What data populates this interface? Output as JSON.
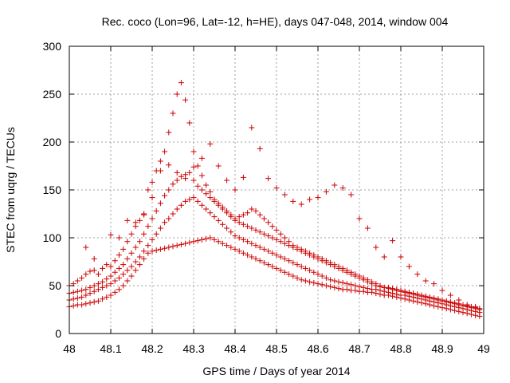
{
  "chart_data": {
    "type": "scatter",
    "title": "Rec. coco (Lon=96, Lat=-12, h=HE), days 047-048, 2014, window 004",
    "xlabel": "GPS time / Days of year 2014",
    "ylabel": "STEC from uqrg / TECUs",
    "xlim": [
      48,
      49
    ],
    "ylim": [
      0,
      300
    ],
    "x_ticks": [
      "48",
      "48.1",
      "48.2",
      "48.3",
      "48.4",
      "48.5",
      "48.6",
      "48.7",
      "48.8",
      "48.9",
      "49"
    ],
    "y_ticks": [
      "0",
      "50",
      "100",
      "150",
      "200",
      "250",
      "300"
    ],
    "grid": true,
    "legend": "none",
    "marker": "plus",
    "color": "#cc0000",
    "series": [
      {
        "x": [
          48.0,
          48.01,
          48.02,
          48.03,
          48.04,
          48.05,
          48.06,
          48.07,
          48.08,
          48.09,
          48.1,
          48.11,
          48.12,
          48.13,
          48.14,
          48.15,
          48.16,
          48.17,
          48.18,
          48.19,
          48.2,
          48.21,
          48.22,
          48.23,
          48.24,
          48.25,
          48.26,
          48.27,
          48.28,
          48.29,
          48.3,
          48.31,
          48.32,
          48.33,
          48.34,
          48.35,
          48.36,
          48.37,
          48.38,
          48.39,
          48.4,
          48.41,
          48.42,
          48.43,
          48.44,
          48.45,
          48.46,
          48.47,
          48.48,
          48.49,
          48.5,
          48.51,
          48.52,
          48.53,
          48.54,
          48.55,
          48.56,
          48.57,
          48.58,
          48.59,
          48.6,
          48.61,
          48.62,
          48.63,
          48.64,
          48.65,
          48.66,
          48.67,
          48.68,
          48.69,
          48.7,
          48.71,
          48.72,
          48.73,
          48.74,
          48.75,
          48.76,
          48.77,
          48.78,
          48.79,
          48.8,
          48.81,
          48.82,
          48.83,
          48.84,
          48.85,
          48.86,
          48.87,
          48.88,
          48.89,
          48.9,
          48.91,
          48.92,
          48.93,
          48.94,
          48.95,
          48.96,
          48.97,
          48.98,
          48.99
        ],
        "y": [
          28,
          29,
          30,
          30,
          31,
          32,
          33,
          34,
          36,
          38,
          40,
          43,
          46,
          50,
          55,
          60,
          66,
          72,
          78,
          84,
          86,
          87,
          88,
          89,
          90,
          91,
          92,
          93,
          94,
          95,
          96,
          97,
          98,
          99,
          100,
          98,
          96,
          94,
          92,
          90,
          88,
          86,
          84,
          82,
          80,
          78,
          76,
          74,
          72,
          70,
          68,
          66,
          64,
          62,
          60,
          58,
          56,
          55,
          54,
          53,
          52,
          51,
          50,
          49,
          48,
          47,
          46,
          46,
          45,
          45,
          44,
          44,
          43,
          43,
          42,
          41,
          40,
          40,
          39,
          38,
          37,
          36,
          35,
          34,
          33,
          32,
          31,
          30,
          29,
          28,
          27,
          26,
          25,
          24,
          23,
          22,
          21,
          20,
          19,
          18
        ]
      },
      {
        "x": [
          48.0,
          48.01,
          48.02,
          48.03,
          48.04,
          48.05,
          48.06,
          48.07,
          48.08,
          48.09,
          48.1,
          48.11,
          48.12,
          48.13,
          48.14,
          48.15,
          48.16,
          48.17,
          48.18,
          48.19,
          48.2,
          48.21,
          48.22,
          48.23,
          48.24,
          48.25,
          48.26,
          48.27,
          48.28,
          48.29,
          48.3,
          48.31,
          48.32,
          48.33,
          48.34,
          48.35,
          48.36,
          48.37,
          48.38,
          48.39,
          48.4,
          48.41,
          48.42,
          48.43,
          48.44,
          48.45,
          48.46,
          48.47,
          48.48,
          48.49,
          48.5,
          48.51,
          48.52,
          48.53,
          48.54,
          48.55,
          48.56,
          48.57,
          48.58,
          48.59,
          48.6,
          48.61,
          48.62,
          48.63,
          48.64,
          48.65,
          48.66,
          48.67,
          48.68,
          48.69,
          48.7,
          48.71,
          48.72,
          48.73,
          48.74,
          48.75,
          48.76,
          48.77,
          48.78,
          48.79,
          48.8,
          48.81,
          48.82,
          48.83,
          48.84,
          48.85,
          48.86,
          48.87,
          48.88,
          48.89,
          48.9,
          48.91,
          48.92,
          48.93,
          48.94,
          48.95,
          48.96,
          48.97,
          48.98,
          48.99
        ],
        "y": [
          35,
          36,
          37,
          38,
          40,
          42,
          44,
          46,
          48,
          50,
          52,
          55,
          58,
          62,
          66,
          70,
          75,
          80,
          86,
          92,
          98,
          104,
          110,
          116,
          120,
          125,
          130,
          134,
          138,
          140,
          142,
          138,
          134,
          130,
          126,
          122,
          118,
          114,
          110,
          106,
          102,
          100,
          98,
          96,
          94,
          92,
          90,
          88,
          86,
          84,
          82,
          80,
          78,
          76,
          74,
          72,
          70,
          68,
          66,
          64,
          62,
          60,
          58,
          56,
          55,
          54,
          53,
          52,
          51,
          50,
          49,
          48,
          47,
          46,
          46,
          45,
          44,
          43,
          42,
          41,
          40,
          40,
          39,
          38,
          37,
          36,
          35,
          34,
          33,
          32,
          31,
          30,
          29,
          28,
          27,
          26,
          25,
          24,
          23,
          22
        ]
      },
      {
        "x": [
          48.0,
          48.01,
          48.02,
          48.03,
          48.04,
          48.05,
          48.06,
          48.07,
          48.08,
          48.09,
          48.1,
          48.11,
          48.12,
          48.13,
          48.14,
          48.15,
          48.16,
          48.17,
          48.18,
          48.19,
          48.2,
          48.21,
          48.22,
          48.23,
          48.24,
          48.25,
          48.26,
          48.27,
          48.28,
          48.29,
          48.3,
          48.31,
          48.32,
          48.33,
          48.34,
          48.35,
          48.36,
          48.37,
          48.38,
          48.39,
          48.4,
          48.41,
          48.42,
          48.43,
          48.44,
          48.45,
          48.46,
          48.47,
          48.48,
          48.49,
          48.5,
          48.51,
          48.52,
          48.53,
          48.54,
          48.55,
          48.56,
          48.57,
          48.58,
          48.59,
          48.6,
          48.61,
          48.62,
          48.63,
          48.64,
          48.65,
          48.66,
          48.67,
          48.68,
          48.69,
          48.7,
          48.71,
          48.72,
          48.73,
          48.74,
          48.75,
          48.76,
          48.77,
          48.78,
          48.79,
          48.8,
          48.81,
          48.82,
          48.83,
          48.84,
          48.85,
          48.86,
          48.87,
          48.88,
          48.89,
          48.9,
          48.91,
          48.92,
          48.93,
          48.94,
          48.95,
          48.96,
          48.97,
          48.98,
          48.99
        ],
        "y": [
          42,
          43,
          44,
          45,
          46,
          48,
          50,
          52,
          54,
          57,
          60,
          64,
          68,
          72,
          78,
          84,
          90,
          96,
          104,
          112,
          120,
          128,
          136,
          144,
          150,
          156,
          160,
          164,
          166,
          168,
          160,
          154,
          150,
          146,
          142,
          138,
          134,
          130,
          126,
          122,
          118,
          116,
          114,
          112,
          110,
          108,
          106,
          104,
          102,
          100,
          98,
          96,
          94,
          92,
          90,
          88,
          86,
          84,
          82,
          80,
          78,
          76,
          74,
          72,
          70,
          68,
          66,
          64,
          62,
          60,
          58,
          56,
          54,
          52,
          50,
          49,
          48,
          47,
          46,
          45,
          44,
          43,
          42,
          41,
          40,
          39,
          38,
          37,
          36,
          35,
          34,
          33,
          32,
          31,
          30,
          29,
          28,
          27,
          26,
          25
        ]
      },
      {
        "x": [
          48.0,
          48.01,
          48.02,
          48.03,
          48.04,
          48.05,
          48.06,
          48.07,
          48.08,
          48.09,
          48.1,
          48.11,
          48.12,
          48.13,
          48.14,
          48.15,
          48.16,
          48.17,
          48.18,
          48.19,
          48.2,
          48.21,
          48.22,
          48.23,
          48.24,
          48.25,
          48.26,
          48.27,
          48.28,
          48.29,
          48.3,
          48.31,
          48.32,
          48.33,
          48.34,
          48.35,
          48.36,
          48.37,
          48.38,
          48.39,
          48.4,
          48.41,
          48.42,
          48.43,
          48.44,
          48.45,
          48.46,
          48.47,
          48.48,
          48.49,
          48.5,
          48.51,
          48.52,
          48.53,
          48.54,
          48.55,
          48.56,
          48.57,
          48.58,
          48.59,
          48.6,
          48.61,
          48.62,
          48.63,
          48.64,
          48.65,
          48.66,
          48.67,
          48.68,
          48.69,
          48.7,
          48.71,
          48.72,
          48.73,
          48.74,
          48.75,
          48.76,
          48.77,
          48.78,
          48.79,
          48.8,
          48.81,
          48.82,
          48.83,
          48.84,
          48.85,
          48.86,
          48.87,
          48.88,
          48.89,
          48.9,
          48.91,
          48.92,
          48.93,
          48.94,
          48.95,
          48.96,
          48.97,
          48.98,
          48.99
        ],
        "y": [
          50,
          52,
          55,
          58,
          62,
          65,
          66,
          62,
          68,
          72,
          70,
          76,
          82,
          88,
          96,
          104,
          112,
          118,
          124,
          150,
          158,
          170,
          180,
          190,
          210,
          230,
          250,
          262,
          244,
          220,
          190,
          175,
          165,
          155,
          148,
          140,
          136,
          132,
          128,
          124,
          120,
          122,
          124,
          126,
          130,
          128,
          124,
          120,
          116,
          112,
          108,
          104,
          100,
          96,
          92,
          90,
          88,
          86,
          84,
          82,
          80,
          78,
          76,
          74,
          72,
          70,
          68,
          66,
          64,
          62,
          60,
          58,
          56,
          54,
          52,
          50,
          48,
          48,
          47,
          46,
          45,
          44,
          43,
          42,
          41,
          40,
          39,
          38,
          37,
          36,
          35,
          34,
          33,
          32,
          31,
          30,
          29,
          28,
          27,
          26
        ]
      },
      {
        "x": [
          48.04,
          48.06,
          48.1,
          48.12,
          48.14,
          48.16,
          48.18,
          48.2,
          48.22,
          48.24,
          48.26,
          48.28,
          48.3,
          48.32,
          48.34,
          48.36,
          48.38,
          48.4,
          48.42,
          48.44,
          48.46,
          48.48,
          48.5,
          48.52,
          48.54,
          48.56,
          48.58,
          48.6,
          48.62,
          48.64,
          48.66,
          48.68,
          48.7,
          48.72,
          48.74,
          48.76,
          48.78,
          48.8,
          48.82,
          48.84,
          48.86,
          48.88,
          48.9,
          48.92,
          48.94,
          48.96,
          48.98
        ],
        "y": [
          90,
          78,
          103,
          100,
          118,
          116,
          125,
          142,
          170,
          176,
          168,
          162,
          174,
          183,
          198,
          175,
          160,
          150,
          163,
          215,
          193,
          162,
          152,
          145,
          138,
          135,
          140,
          142,
          148,
          155,
          152,
          145,
          120,
          110,
          90,
          80,
          97,
          80,
          70,
          62,
          55,
          52,
          45,
          40,
          35,
          30,
          28
        ]
      }
    ]
  }
}
